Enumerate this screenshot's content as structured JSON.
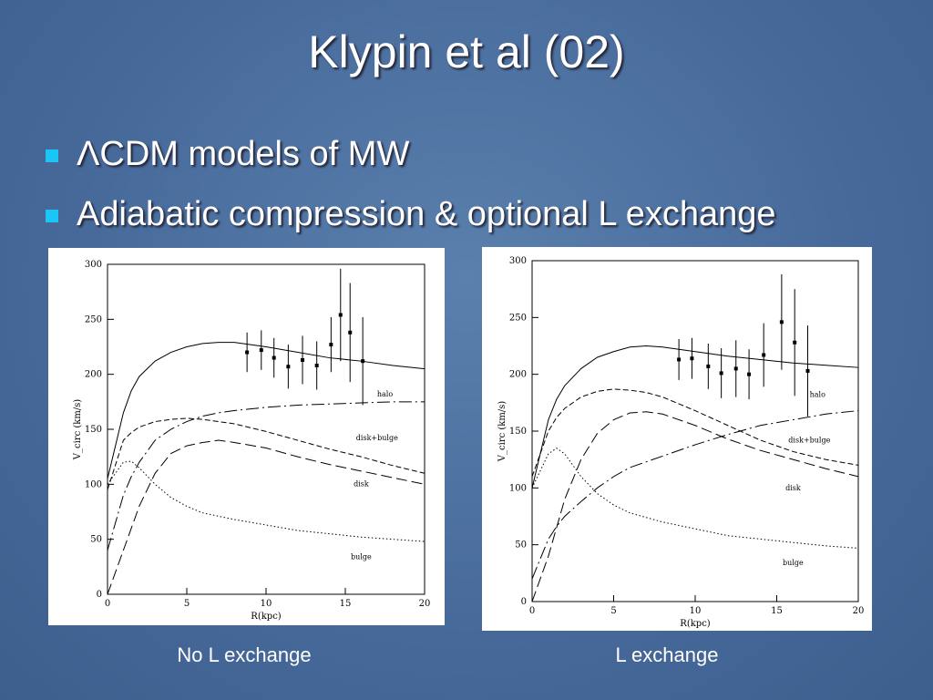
{
  "title": "Klypin et al (02)",
  "bullets": [
    "ΛCDM models of MW",
    "Adiabatic compression & optional L exchange"
  ],
  "captions": [
    "No L exchange",
    "L exchange"
  ],
  "chart_data": [
    {
      "type": "line",
      "xlabel": "R(kpc)",
      "ylabel": "V_circ (km/s)",
      "xlim": [
        0,
        20
      ],
      "ylim": [
        0,
        300
      ],
      "xticks": [
        0,
        5,
        10,
        15,
        20
      ],
      "yticks": [
        0,
        50,
        100,
        150,
        200,
        250,
        300
      ],
      "x": [
        0,
        1,
        1.5,
        2,
        3,
        4,
        5,
        6,
        7,
        8,
        10,
        12,
        14,
        16,
        18,
        20
      ],
      "series": [
        {
          "values": [
            105,
            165,
            185,
            198,
            212,
            220,
            225,
            228,
            229,
            229,
            225,
            220,
            215,
            212,
            208,
            205
          ]
        },
        {
          "name": "halo",
          "values": [
            40,
            90,
            107,
            120,
            140,
            150,
            157,
            162,
            165,
            167,
            170,
            172,
            173,
            174,
            175,
            175
          ]
        },
        {
          "name": "disk+bulge",
          "values": [
            95,
            140,
            147,
            152,
            157,
            159,
            160,
            159,
            157,
            155,
            148,
            140,
            132,
            125,
            117,
            110
          ]
        },
        {
          "name": "disk",
          "values": [
            0,
            40,
            60,
            80,
            110,
            128,
            135,
            138,
            140,
            138,
            133,
            125,
            118,
            112,
            106,
            100
          ]
        },
        {
          "name": "bulge",
          "values": [
            100,
            120,
            121,
            115,
            100,
            88,
            80,
            74,
            71,
            68,
            63,
            58,
            55,
            52,
            50,
            48
          ]
        }
      ],
      "errorbars": {
        "x": [
          8.8,
          9.7,
          10.5,
          11.4,
          12.3,
          13.2,
          14.1,
          14.7,
          15.3,
          16.1
        ],
        "values": [
          220,
          222,
          215,
          207,
          213,
          208,
          227,
          254,
          238,
          212
        ],
        "errors": [
          18,
          18,
          18,
          20,
          22,
          22,
          25,
          42,
          45,
          40
        ]
      }
    },
    {
      "type": "line",
      "xlabel": "R(kpc)",
      "ylabel": "V_circ (km/s)",
      "xlim": [
        0,
        20
      ],
      "ylim": [
        0,
        300
      ],
      "xticks": [
        0,
        5,
        10,
        15,
        20
      ],
      "yticks": [
        0,
        50,
        100,
        150,
        200,
        250,
        300
      ],
      "x": [
        0,
        1,
        1.5,
        2,
        3,
        4,
        5,
        6,
        7,
        8,
        10,
        12,
        14,
        16,
        18,
        20
      ],
      "series": [
        {
          "values": [
            100,
            160,
            178,
            190,
            205,
            215,
            220,
            224,
            225,
            224,
            220,
            216,
            213,
            210,
            208,
            206
          ]
        },
        {
          "name": "halo",
          "values": [
            20,
            55,
            66,
            75,
            88,
            100,
            110,
            118,
            123,
            128,
            138,
            147,
            155,
            160,
            165,
            168
          ]
        },
        {
          "name": "disk+bulge",
          "values": [
            110,
            150,
            162,
            170,
            180,
            185,
            187,
            186,
            184,
            180,
            168,
            155,
            142,
            132,
            125,
            120
          ]
        },
        {
          "name": "disk",
          "values": [
            0,
            40,
            65,
            90,
            125,
            148,
            160,
            166,
            167,
            165,
            155,
            143,
            133,
            125,
            117,
            110
          ]
        },
        {
          "name": "bulge",
          "values": [
            100,
            130,
            135,
            130,
            110,
            95,
            85,
            78,
            74,
            70,
            64,
            58,
            55,
            52,
            49,
            47
          ]
        }
      ],
      "errorbars": {
        "x": [
          9.0,
          9.8,
          10.8,
          11.6,
          12.5,
          13.3,
          14.2,
          15.3,
          16.1,
          16.9
        ],
        "values": [
          213,
          214,
          207,
          201,
          205,
          200,
          217,
          246,
          228,
          203
        ],
        "errors": [
          18,
          18,
          20,
          22,
          25,
          22,
          28,
          42,
          47,
          40
        ]
      }
    }
  ]
}
